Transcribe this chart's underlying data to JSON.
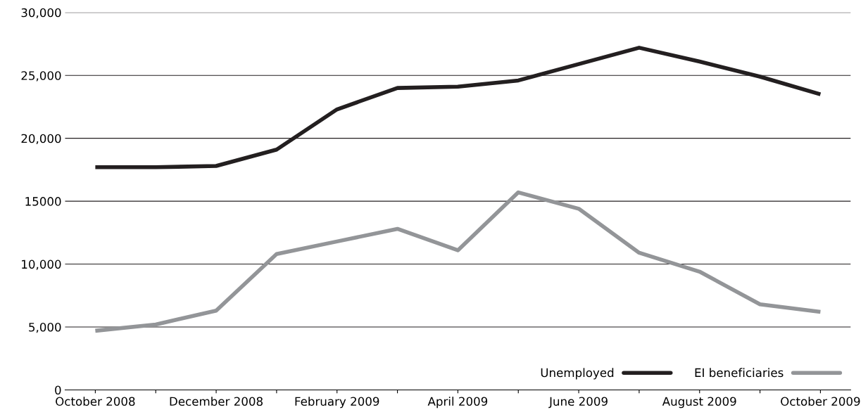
{
  "chart_data": {
    "type": "line",
    "categories": [
      "October 2008",
      null,
      "December 2008",
      null,
      "February 2009",
      null,
      "April 2009",
      null,
      "June 2009",
      null,
      "August 2009",
      null,
      "October 2009"
    ],
    "series": [
      {
        "name": "Unemployed",
        "color": "#231f20",
        "values": [
          17700,
          17700,
          17800,
          19100,
          22300,
          24000,
          24100,
          24600,
          25900,
          27200,
          26100,
          24900,
          23500
        ]
      },
      {
        "name": "EI beneficiaries",
        "color": "#939598",
        "values": [
          4700,
          5200,
          6300,
          10800,
          11800,
          12800,
          11100,
          15700,
          14400,
          10900,
          9400,
          6800,
          6200
        ]
      }
    ],
    "ylim": [
      0,
      30000
    ],
    "yticks": [
      0,
      {
        "value": 5000,
        "label": "5,000"
      },
      {
        "value": 10000,
        "label": "10,000"
      },
      {
        "value": 15000,
        "label": "15000"
      },
      {
        "value": 20000,
        "label": "20,000"
      },
      {
        "value": 25000,
        "label": "25,000"
      },
      {
        "value": 30000,
        "label": "30,000"
      }
    ],
    "grid": "y",
    "legend": "bottom right",
    "marker": "none",
    "line_style": "solid"
  }
}
